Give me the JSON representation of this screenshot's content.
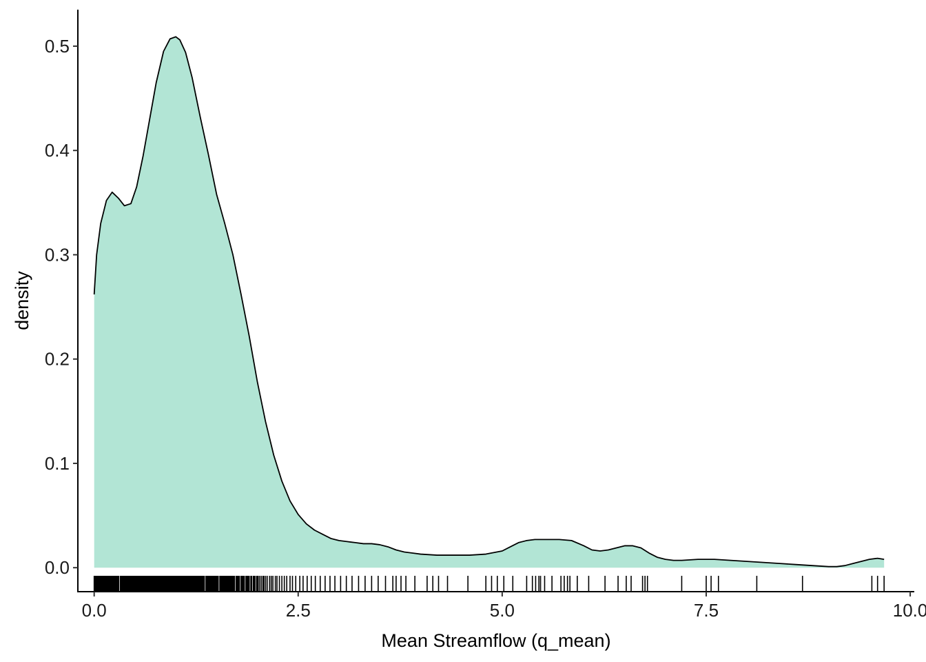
{
  "chart_data": {
    "type": "area",
    "subtype": "density-with-rug",
    "title": "",
    "xlabel": "Mean Streamflow (q_mean)",
    "ylabel": "density",
    "xlim": [
      -0.2,
      10.05
    ],
    "ylim": [
      -0.023,
      0.535
    ],
    "x_ticks": [
      0.0,
      2.5,
      5.0,
      7.5,
      10.0
    ],
    "x_tick_labels": [
      "0.0",
      "2.5",
      "5.0",
      "7.5",
      "10.0"
    ],
    "y_ticks": [
      0.0,
      0.1,
      0.2,
      0.3,
      0.4,
      0.5
    ],
    "y_tick_labels": [
      "0.0",
      "0.1",
      "0.2",
      "0.3",
      "0.4",
      "0.5"
    ],
    "grid": false,
    "legend": "none",
    "fill_color": "#b2e5d5",
    "line_color": "#000000",
    "series": [
      {
        "x": [
          0.0,
          0.03,
          0.08,
          0.15,
          0.22,
          0.3,
          0.37,
          0.45,
          0.52,
          0.6,
          0.68,
          0.76,
          0.85,
          0.93,
          1.0,
          1.05,
          1.12,
          1.2,
          1.3,
          1.4,
          1.5,
          1.6,
          1.7,
          1.8,
          1.9,
          2.0,
          2.1,
          2.2,
          2.3,
          2.4,
          2.5,
          2.6,
          2.7,
          2.8,
          2.9,
          3.0,
          3.1,
          3.2,
          3.3,
          3.4,
          3.5,
          3.6,
          3.7,
          3.8,
          3.9,
          4.0,
          4.2,
          4.4,
          4.6,
          4.8,
          5.0,
          5.1,
          5.2,
          5.3,
          5.4,
          5.55,
          5.7,
          5.85,
          6.0,
          6.1,
          6.2,
          6.3,
          6.4,
          6.5,
          6.6,
          6.7,
          6.8,
          6.9,
          7.0,
          7.1,
          7.2,
          7.4,
          7.6,
          7.8,
          8.0,
          8.2,
          8.4,
          8.6,
          8.8,
          9.0,
          9.1,
          9.2,
          9.3,
          9.4,
          9.5,
          9.6,
          9.68
        ],
        "y": [
          0.262,
          0.3,
          0.33,
          0.352,
          0.36,
          0.354,
          0.347,
          0.349,
          0.365,
          0.395,
          0.43,
          0.465,
          0.495,
          0.507,
          0.509,
          0.506,
          0.494,
          0.47,
          0.432,
          0.396,
          0.358,
          0.33,
          0.3,
          0.262,
          0.222,
          0.178,
          0.14,
          0.108,
          0.083,
          0.064,
          0.051,
          0.042,
          0.036,
          0.032,
          0.028,
          0.026,
          0.025,
          0.024,
          0.023,
          0.023,
          0.022,
          0.02,
          0.017,
          0.015,
          0.014,
          0.013,
          0.012,
          0.012,
          0.012,
          0.013,
          0.016,
          0.02,
          0.024,
          0.026,
          0.027,
          0.027,
          0.027,
          0.026,
          0.021,
          0.017,
          0.016,
          0.017,
          0.019,
          0.021,
          0.021,
          0.019,
          0.014,
          0.01,
          0.008,
          0.007,
          0.007,
          0.008,
          0.008,
          0.007,
          0.006,
          0.005,
          0.004,
          0.003,
          0.002,
          0.001,
          0.001,
          0.002,
          0.004,
          0.006,
          0.008,
          0.009,
          0.008
        ]
      }
    ],
    "rug": [
      0.0,
      0.01,
      0.02,
      0.03,
      0.04,
      0.05,
      0.06,
      0.07,
      0.08,
      0.09,
      0.1,
      0.11,
      0.12,
      0.13,
      0.14,
      0.15,
      0.16,
      0.17,
      0.18,
      0.19,
      0.2,
      0.21,
      0.22,
      0.23,
      0.24,
      0.25,
      0.26,
      0.27,
      0.28,
      0.29,
      0.3,
      0.32,
      0.33,
      0.34,
      0.35,
      0.36,
      0.37,
      0.38,
      0.39,
      0.4,
      0.41,
      0.42,
      0.43,
      0.44,
      0.45,
      0.46,
      0.47,
      0.48,
      0.49,
      0.5,
      0.51,
      0.52,
      0.53,
      0.54,
      0.55,
      0.56,
      0.57,
      0.58,
      0.59,
      0.6,
      0.61,
      0.62,
      0.63,
      0.64,
      0.65,
      0.66,
      0.67,
      0.68,
      0.69,
      0.7,
      0.71,
      0.72,
      0.73,
      0.74,
      0.75,
      0.76,
      0.77,
      0.78,
      0.79,
      0.8,
      0.81,
      0.82,
      0.83,
      0.84,
      0.85,
      0.86,
      0.87,
      0.88,
      0.89,
      0.9,
      0.91,
      0.92,
      0.93,
      0.94,
      0.95,
      0.96,
      0.97,
      0.98,
      0.99,
      1.0,
      1.01,
      1.02,
      1.03,
      1.04,
      1.05,
      1.06,
      1.07,
      1.08,
      1.09,
      1.1,
      1.11,
      1.12,
      1.13,
      1.14,
      1.15,
      1.16,
      1.17,
      1.18,
      1.19,
      1.2,
      1.21,
      1.22,
      1.23,
      1.24,
      1.25,
      1.26,
      1.27,
      1.28,
      1.29,
      1.3,
      1.31,
      1.32,
      1.33,
      1.34,
      1.35,
      1.37,
      1.38,
      1.39,
      1.4,
      1.41,
      1.42,
      1.43,
      1.44,
      1.45,
      1.46,
      1.47,
      1.48,
      1.49,
      1.5,
      1.51,
      1.52,
      1.54,
      1.55,
      1.56,
      1.57,
      1.58,
      1.59,
      1.6,
      1.61,
      1.62,
      1.63,
      1.64,
      1.65,
      1.66,
      1.67,
      1.68,
      1.69,
      1.7,
      1.71,
      1.72,
      1.74,
      1.75,
      1.76,
      1.77,
      1.78,
      1.8,
      1.81,
      1.82,
      1.83,
      1.84,
      1.86,
      1.87,
      1.88,
      1.89,
      1.9,
      1.92,
      1.93,
      1.95,
      1.96,
      1.97,
      1.99,
      2.0,
      2.01,
      2.03,
      2.05,
      2.07,
      2.08,
      2.1,
      2.12,
      2.15,
      2.17,
      2.19,
      2.22,
      2.24,
      2.27,
      2.3,
      2.33,
      2.36,
      2.4,
      2.43,
      2.47,
      2.52,
      2.56,
      2.61,
      2.66,
      2.71,
      2.77,
      2.83,
      2.89,
      2.95,
      3.02,
      3.09,
      3.16,
      3.24,
      3.32,
      3.4,
      3.48,
      3.57,
      3.66,
      3.7,
      3.76,
      3.82,
      3.93,
      4.08,
      4.15,
      4.22,
      4.33,
      4.58,
      4.8,
      4.87,
      4.94,
      5.02,
      5.13,
      5.3,
      5.37,
      5.41,
      5.45,
      5.47,
      5.52,
      5.61,
      5.72,
      5.76,
      5.8,
      5.83,
      5.92,
      6.06,
      6.26,
      6.42,
      6.52,
      6.58,
      6.72,
      6.75,
      6.78,
      7.2,
      7.5,
      7.56,
      7.65,
      8.12,
      8.68,
      9.53,
      9.6,
      9.68
    ]
  }
}
